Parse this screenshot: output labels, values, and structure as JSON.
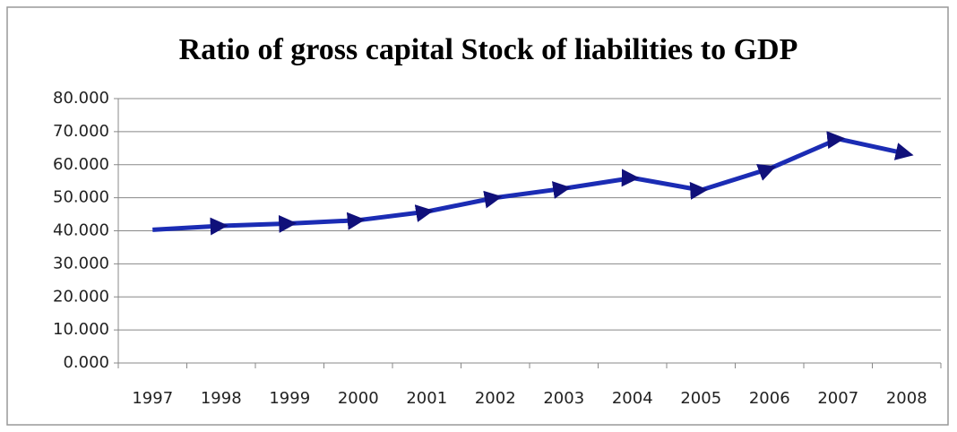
{
  "chart_data": {
    "type": "line",
    "title": "Ratio of gross capital Stock of liabilities to GDP",
    "categories": [
      "1997",
      "1998",
      "1999",
      "2000",
      "2001",
      "2002",
      "2003",
      "2004",
      "2005",
      "2006",
      "2007",
      "2008"
    ],
    "values": [
      40.3,
      41.5,
      42.2,
      43.2,
      45.8,
      50.0,
      52.8,
      56.0,
      52.3,
      58.8,
      67.8,
      63.3
    ],
    "color": "#1b2cb4",
    "ylim": [
      0,
      80
    ],
    "yticks": [
      {
        "value": 0,
        "label": "0.000"
      },
      {
        "value": 10,
        "label": "10.000"
      },
      {
        "value": 20,
        "label": "20.000"
      },
      {
        "value": 30,
        "label": "30.000"
      },
      {
        "value": 40,
        "label": "40.000"
      },
      {
        "value": 50,
        "label": "50.000"
      },
      {
        "value": 60,
        "label": "60.000"
      },
      {
        "value": 70,
        "label": "70.000"
      },
      {
        "value": 80,
        "label": "80.000"
      }
    ],
    "grid": true
  }
}
